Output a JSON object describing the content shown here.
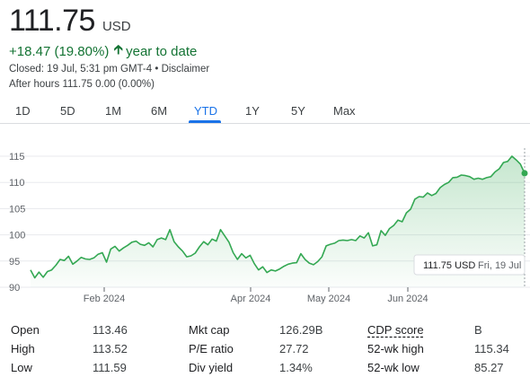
{
  "quote": {
    "price": "111.75",
    "currency": "USD",
    "change": "+18.47 (19.80%)",
    "change_period": "year to date",
    "closed": "Closed: 19 Jul, 5:31 pm GMT-4 • Disclaimer",
    "after_hours": "After hours 111.75 0.00 (0.00%)"
  },
  "tabs": [
    "1D",
    "5D",
    "1M",
    "6M",
    "YTD",
    "1Y",
    "5Y",
    "Max"
  ],
  "active_tab": "YTD",
  "colors": {
    "positive": "#137333",
    "line": "#34a853",
    "accent": "#1a73e8"
  },
  "tooltip": {
    "price": "111.75 USD",
    "date": "Fri, 19 Jul"
  },
  "chart_data": {
    "type": "area",
    "x_labels": [
      "Feb 2024",
      "Apr 2024",
      "May 2024",
      "Jun 2024"
    ],
    "y_ticks": [
      90,
      95,
      100,
      105,
      110,
      115
    ],
    "ylim": [
      90,
      117
    ],
    "grid": true,
    "series": [
      {
        "values": [
          93.3,
          91.8,
          92.9,
          91.9,
          93.0,
          93.3,
          94.2,
          95.3,
          95.1,
          95.9,
          94.4,
          95.0,
          95.7,
          95.4,
          95.3,
          95.6,
          96.3,
          96.6,
          94.8,
          97.3,
          97.8,
          96.9,
          97.5,
          98.0,
          98.6,
          98.8,
          98.2,
          98.0,
          98.5,
          97.7,
          99.1,
          99.4,
          99.1,
          101.0,
          98.7,
          97.7,
          96.9,
          95.8,
          96.0,
          96.5,
          97.7,
          98.7,
          98.1,
          99.2,
          98.8,
          101.0,
          99.8,
          98.6,
          96.6,
          95.3,
          96.4,
          95.6,
          96.1,
          94.5,
          93.3,
          93.9,
          92.8,
          93.3,
          93.1,
          93.5,
          94.0,
          94.4,
          94.6,
          94.7,
          96.4,
          95.3,
          94.6,
          94.3,
          94.9,
          95.8,
          97.9,
          98.2,
          98.4,
          98.9,
          99.0,
          98.9,
          99.1,
          98.9,
          99.8,
          99.4,
          100.4,
          97.9,
          98.1,
          100.8,
          99.9,
          101.2,
          101.8,
          102.8,
          102.5,
          104.2,
          104.9,
          106.8,
          107.3,
          107.2,
          108.0,
          107.5,
          107.9,
          109.0,
          109.6,
          110.0,
          110.9,
          111.0,
          111.4,
          111.3,
          111.1,
          110.6,
          110.8,
          110.6,
          110.9,
          111.1,
          112.0,
          112.6,
          113.8,
          114.0,
          115.0,
          114.3,
          113.5,
          111.75
        ]
      }
    ]
  },
  "stats": {
    "rows": [
      [
        {
          "label": "Open",
          "value": "113.46"
        },
        {
          "label": "Mkt cap",
          "value": "126.29B"
        },
        {
          "label": "CDP score",
          "value": "B"
        }
      ],
      [
        {
          "label": "High",
          "value": "113.52"
        },
        {
          "label": "P/E ratio",
          "value": "27.72"
        },
        {
          "label": "52-wk high",
          "value": "115.34"
        }
      ],
      [
        {
          "label": "Low",
          "value": "111.59"
        },
        {
          "label": "Div yield",
          "value": "1.34%"
        },
        {
          "label": "52-wk low",
          "value": "85.27"
        }
      ]
    ]
  }
}
